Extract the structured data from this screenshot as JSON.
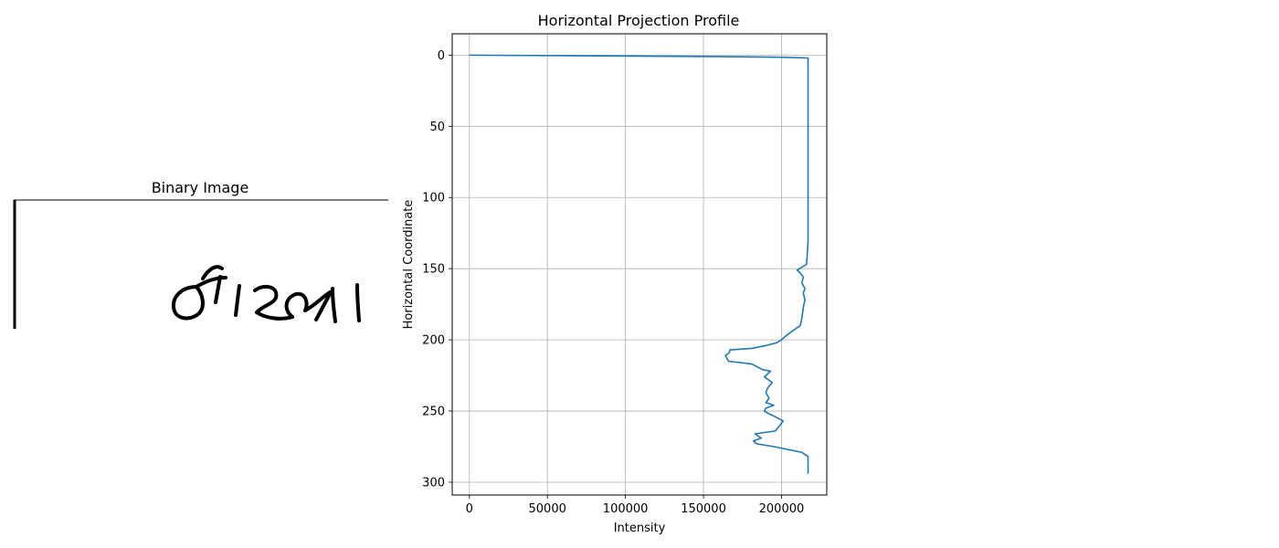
{
  "left_panel": {
    "title": "Binary Image",
    "image": "handwritten-word-binary-image"
  },
  "chart_data": {
    "type": "line",
    "title": "Horizontal Projection Profile",
    "xlabel": "Intensity",
    "ylabel": "Horizontal Coordinate",
    "xlim": [
      -11000,
      229000
    ],
    "ylim": [
      309,
      -15
    ],
    "y_inverted": true,
    "grid": true,
    "xticks": [
      0,
      50000,
      100000,
      150000,
      200000
    ],
    "xtick_labels": [
      "0",
      "50000",
      "100000",
      "150000",
      "200000"
    ],
    "yticks": [
      0,
      50,
      100,
      150,
      200,
      250,
      300
    ],
    "ytick_labels": [
      "0",
      "50",
      "100",
      "150",
      "200",
      "250",
      "300"
    ],
    "line_color": "#1f77b4",
    "series": [
      {
        "x": [
          0,
          160000,
          200000,
          217000,
          217000,
          217000,
          217000,
          217000,
          216500,
          216000,
          210000,
          212000,
          214000,
          213000,
          215000,
          214000,
          215000,
          214000,
          213000,
          212000,
          208000,
          203000,
          200000,
          197000,
          190000,
          181000,
          167000,
          166500,
          164000,
          166000,
          181000,
          188000,
          193000,
          189000,
          194000,
          191000,
          190000,
          192000,
          190000,
          195000,
          190000,
          189000,
          192000,
          196000,
          201000,
          199000,
          196000,
          183000,
          187000,
          182000,
          184000,
          195000,
          213000,
          217000,
          217000
        ],
        "y": [
          0,
          1,
          1.5,
          2,
          20,
          70,
          100,
          130,
          140,
          147,
          151,
          153,
          156,
          160,
          164,
          167,
          172,
          177,
          185,
          190,
          193,
          197,
          200,
          202,
          204,
          206,
          207,
          209,
          211,
          215,
          217,
          221,
          222,
          226,
          230,
          234,
          237,
          241,
          244,
          246,
          248,
          250,
          252,
          254,
          257,
          260,
          264,
          266,
          269,
          271,
          273,
          275,
          279,
          282,
          294
        ]
      }
    ]
  }
}
